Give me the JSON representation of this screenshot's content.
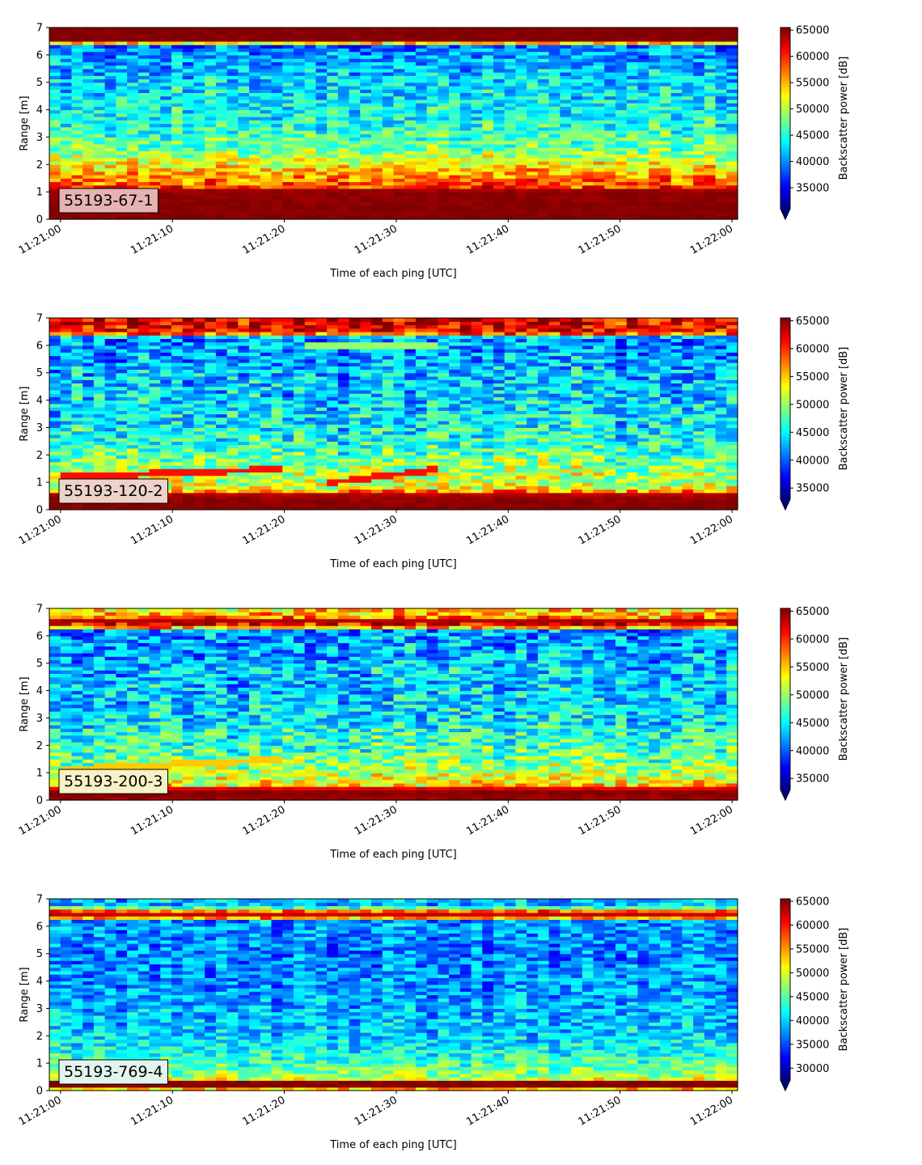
{
  "chart_data": [
    {
      "type": "heatmap",
      "panel_label": "55193-67-1",
      "label_box_color": "#e6b2b2",
      "xlabel": "Time of each ping [UTC]",
      "ylabel": "Range [m]",
      "x_tick_labels": [
        "11:21:00",
        "11:21:10",
        "11:21:20",
        "11:21:30",
        "11:21:40",
        "11:21:50",
        "11:22:00"
      ],
      "xlim_seconds": [
        -1,
        60.5
      ],
      "y_ticks": [
        0,
        1,
        2,
        3,
        4,
        5,
        6,
        7
      ],
      "ylim": [
        0,
        7
      ],
      "colorbar_label": "Backscatter power [dB]",
      "colorbar_ticks": [
        35000,
        40000,
        45000,
        50000,
        55000,
        60000,
        65000
      ],
      "clim": [
        31000,
        65500
      ],
      "colorbar_extend": "min",
      "colormap": "jet",
      "pings": 62,
      "range_bins": 56,
      "profile": [
        {
          "range": 0.0,
          "value": 65500
        },
        {
          "range": 0.2,
          "value": 65500
        },
        {
          "range": 1.05,
          "value": 65000
        },
        {
          "range": 1.2,
          "value": 59000
        },
        {
          "range": 1.6,
          "value": 56000
        },
        {
          "range": 2.0,
          "value": 53000
        },
        {
          "range": 2.5,
          "value": 48000
        },
        {
          "range": 3.5,
          "value": 45000
        },
        {
          "range": 5.0,
          "value": 43000
        },
        {
          "range": 6.2,
          "value": 40000
        },
        {
          "range": 6.38,
          "value": 38000
        },
        {
          "range": 6.46,
          "value": 60000
        },
        {
          "range": 6.55,
          "value": 65500
        },
        {
          "range": 7.0,
          "value": 65500
        }
      ],
      "noise": 4500,
      "streaks": []
    },
    {
      "type": "heatmap",
      "panel_label": "55193-120-2",
      "label_box_color": "#ecd2c8",
      "xlabel": "Time of each ping [UTC]",
      "ylabel": "Range [m]",
      "x_tick_labels": [
        "11:21:00",
        "11:21:10",
        "11:21:20",
        "11:21:30",
        "11:21:40",
        "11:21:50",
        "11:22:00"
      ],
      "xlim_seconds": [
        -1,
        60.5
      ],
      "y_ticks": [
        0,
        1,
        2,
        3,
        4,
        5,
        6,
        7
      ],
      "ylim": [
        0,
        7
      ],
      "colorbar_label": "Backscatter power [dB]",
      "colorbar_ticks": [
        35000,
        40000,
        45000,
        50000,
        55000,
        60000,
        65000
      ],
      "clim": [
        33000,
        65500
      ],
      "colorbar_extend": "min",
      "colormap": "jet",
      "pings": 62,
      "range_bins": 56,
      "profile": [
        {
          "range": 0.0,
          "value": 65500
        },
        {
          "range": 0.1,
          "value": 65500
        },
        {
          "range": 0.55,
          "value": 64500
        },
        {
          "range": 0.75,
          "value": 53000
        },
        {
          "range": 1.5,
          "value": 50000
        },
        {
          "range": 2.5,
          "value": 46000
        },
        {
          "range": 3.5,
          "value": 44500
        },
        {
          "range": 5.0,
          "value": 43000
        },
        {
          "range": 6.2,
          "value": 41000
        },
        {
          "range": 6.35,
          "value": 45000
        },
        {
          "range": 6.45,
          "value": 60000
        },
        {
          "range": 6.6,
          "value": 62000
        },
        {
          "range": 7.0,
          "value": 62000
        }
      ],
      "noise": 5000,
      "streaks": [
        {
          "t0": 0,
          "r0": 1.2,
          "t1": 20,
          "r1": 1.5,
          "value": 61000
        },
        {
          "t0": 24,
          "r0": 1.0,
          "t1": 34,
          "r1": 1.5,
          "value": 61000
        },
        {
          "t0": 22,
          "r0": 6.05,
          "t1": 34,
          "r1": 5.95,
          "value": 50000
        }
      ]
    },
    {
      "type": "heatmap",
      "panel_label": "55193-200-3",
      "label_box_color": "#f6f2c6",
      "xlabel": "Time of each ping [UTC]",
      "ylabel": "Range [m]",
      "x_tick_labels": [
        "11:21:00",
        "11:21:10",
        "11:21:20",
        "11:21:30",
        "11:21:40",
        "11:21:50",
        "11:22:00"
      ],
      "xlim_seconds": [
        -1,
        60.5
      ],
      "y_ticks": [
        0,
        1,
        2,
        3,
        4,
        5,
        6,
        7
      ],
      "ylim": [
        0,
        7
      ],
      "colorbar_label": "Backscatter power [dB]",
      "colorbar_ticks": [
        35000,
        40000,
        45000,
        50000,
        55000,
        60000,
        65000
      ],
      "clim": [
        33000,
        65500
      ],
      "colorbar_extend": "min",
      "colormap": "jet",
      "pings": 62,
      "range_bins": 56,
      "profile": [
        {
          "range": 0.0,
          "value": 63000
        },
        {
          "range": 0.1,
          "value": 65500
        },
        {
          "range": 0.4,
          "value": 65000
        },
        {
          "range": 0.55,
          "value": 54000
        },
        {
          "range": 1.2,
          "value": 50000
        },
        {
          "range": 2.0,
          "value": 47000
        },
        {
          "range": 3.0,
          "value": 44500
        },
        {
          "range": 5.0,
          "value": 43000
        },
        {
          "range": 6.2,
          "value": 41500
        },
        {
          "range": 6.35,
          "value": 60000
        },
        {
          "range": 6.55,
          "value": 64500
        },
        {
          "range": 6.7,
          "value": 57000
        },
        {
          "range": 7.0,
          "value": 54000
        }
      ],
      "noise": 5000,
      "streaks": [
        {
          "t0": 0,
          "r0": 1.15,
          "t1": 20,
          "r1": 1.5,
          "value": 55000
        }
      ]
    },
    {
      "type": "heatmap",
      "panel_label": "55193-769-4",
      "label_box_color": "#e2f4ee",
      "xlabel": "Time of each ping [UTC]",
      "ylabel": "Range [m]",
      "x_tick_labels": [
        "11:21:00",
        "11:21:10",
        "11:21:20",
        "11:21:30",
        "11:21:40",
        "11:21:50",
        "11:22:00"
      ],
      "xlim_seconds": [
        -1,
        60.5
      ],
      "y_ticks": [
        0,
        1,
        2,
        3,
        4,
        5,
        6,
        7
      ],
      "ylim": [
        0,
        7
      ],
      "colorbar_label": "Backscatter power [dB]",
      "colorbar_ticks": [
        30000,
        35000,
        40000,
        45000,
        50000,
        55000,
        60000,
        65000
      ],
      "clim": [
        27500,
        65500
      ],
      "colorbar_extend": "min",
      "colormap": "jet",
      "pings": 62,
      "range_bins": 56,
      "profile": [
        {
          "range": 0.0,
          "value": 45000
        },
        {
          "range": 0.15,
          "value": 65500
        },
        {
          "range": 0.35,
          "value": 65000
        },
        {
          "range": 0.45,
          "value": 48000
        },
        {
          "range": 1.0,
          "value": 44000
        },
        {
          "range": 2.0,
          "value": 40000
        },
        {
          "range": 3.5,
          "value": 38000
        },
        {
          "range": 5.0,
          "value": 37000
        },
        {
          "range": 6.2,
          "value": 38000
        },
        {
          "range": 6.35,
          "value": 60000
        },
        {
          "range": 6.5,
          "value": 65000
        },
        {
          "range": 6.6,
          "value": 52000
        },
        {
          "range": 6.75,
          "value": 39000
        },
        {
          "range": 7.0,
          "value": 39000
        }
      ],
      "noise": 4500,
      "streaks": []
    }
  ]
}
